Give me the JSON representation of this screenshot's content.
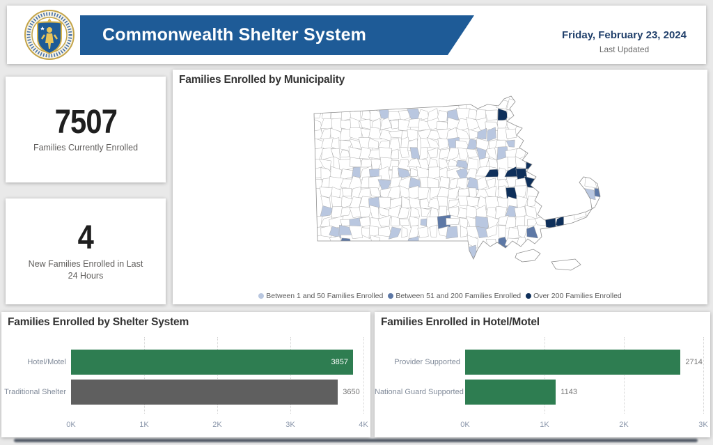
{
  "header": {
    "title": "Commonwealth Shelter System",
    "date": "Friday, February 23, 2024",
    "last_updated_label": "Last Updated",
    "banner_color": "#1e5b97",
    "seal_name": "massachusetts-state-seal"
  },
  "kpis": [
    {
      "value": "7507",
      "label": "Families Currently Enrolled"
    },
    {
      "value": "4",
      "label": "New Families Enrolled in Last 24 Hours"
    }
  ],
  "map": {
    "title": "Families Enrolled by Municipality",
    "legend": [
      {
        "label": "Between 1 and 50 Families Enrolled",
        "color": "#b9c7e0"
      },
      {
        "label": "Between 51 and 200 Families Enrolled",
        "color": "#5d78a6"
      },
      {
        "label": "Over 200 Families Enrolled",
        "color": "#0e2f5a"
      }
    ]
  },
  "chart_data": [
    {
      "type": "bar",
      "orientation": "horizontal",
      "title": "Families Enrolled by Shelter System",
      "categories": [
        "Hotel/Motel",
        "Traditional Shelter"
      ],
      "values": [
        3857,
        3650
      ],
      "colors": [
        "#2e7d51",
        "#5f5f5f"
      ],
      "xlim": [
        0,
        4000
      ],
      "ticks": [
        "0K",
        "1K",
        "2K",
        "3K",
        "4K"
      ],
      "grid": "dotted-vertical",
      "legend_position": "none"
    },
    {
      "type": "bar",
      "orientation": "horizontal",
      "title": "Families Enrolled in Hotel/Motel",
      "categories": [
        "Provider Supported",
        "National Guard Supported"
      ],
      "values": [
        2714,
        1143
      ],
      "colors": [
        "#2e7d51",
        "#2e7d51"
      ],
      "xlim": [
        0,
        3000
      ],
      "ticks": [
        "0K",
        "1K",
        "2K",
        "3K"
      ],
      "grid": "dotted-vertical",
      "legend_position": "none"
    }
  ]
}
